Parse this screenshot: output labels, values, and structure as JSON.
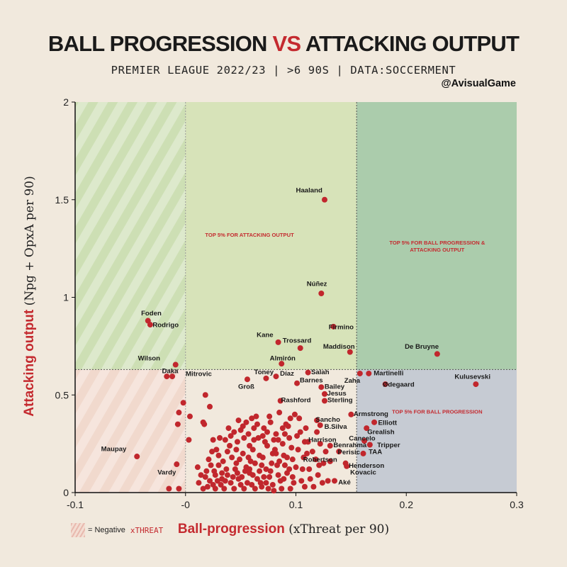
{
  "header": {
    "title_part1": "BALL PROGRESSION ",
    "title_vs": "VS",
    "title_part2": " ATTACKING OUTPUT",
    "subtitle": "PREMIER LEAGUE 2022/23  |  >6 90S  |  DATA:SOCCERMENT",
    "handle": "@AvisualGame"
  },
  "legend": {
    "text": "= Negative",
    "text2": "xTHREAT"
  },
  "axes": {
    "x_bold": "Ball-progression",
    "x_rest": " (xThreat per 90)",
    "y_bold": "Attacking output",
    "y_rest": " (Npg + OpxA per 90)"
  },
  "colors": {
    "background": "#f1e9dd",
    "accent": "#c42a2f",
    "point": "#c1272d",
    "attacking_zone": "#d7e3b9",
    "both_zone": "#abccac",
    "progression_zone": "#c6cbd3",
    "negative_zone_low": "#f1d9cd",
    "negative_zone_high": "#cddfb4"
  },
  "chart_data": {
    "type": "scatter",
    "xlim": [
      -0.1,
      0.3
    ],
    "ylim": [
      0,
      2
    ],
    "xticks": [
      -0.1,
      0,
      0.1,
      0.2,
      0.3
    ],
    "xtick_labels": [
      "-0.1",
      "-0",
      "0.1",
      "0.2",
      "0.3"
    ],
    "yticks": [
      0,
      0.5,
      1,
      1.5,
      2
    ],
    "ytick_labels": [
      "0",
      "0.5",
      "1",
      "1.5",
      "2"
    ],
    "thresholds": {
      "x": 0.155,
      "y": 0.63
    },
    "zone_labels": [
      {
        "text": [
          "TOP 5% FOR ATTACKING OUTPUT"
        ],
        "x": 0.058,
        "y": 1.31
      },
      {
        "text": [
          "TOP 5% FOR BALL PROGRESSION &",
          "ATTACKING OUTPUT"
        ],
        "x": 0.228,
        "y": 1.27
      },
      {
        "text": [
          "TOP 5% FOR BALL PROGRESSION"
        ],
        "x": 0.228,
        "y": 0.405
      }
    ],
    "labeled_points": [
      {
        "name": "Haaland",
        "x": 0.126,
        "y": 1.5,
        "lx": 0.112,
        "ly": 1.55
      },
      {
        "name": "Núñez",
        "x": 0.123,
        "y": 1.02,
        "lx": 0.119,
        "ly": 1.07
      },
      {
        "name": "Foden",
        "x": -0.034,
        "y": 0.88,
        "lx": -0.031,
        "ly": 0.92
      },
      {
        "name": "Rodrigo",
        "x": -0.032,
        "y": 0.86,
        "lx": -0.018,
        "ly": 0.86
      },
      {
        "name": "Firmino",
        "x": 0.134,
        "y": 0.85,
        "lx": 0.141,
        "ly": 0.85
      },
      {
        "name": "Kane",
        "x": 0.084,
        "y": 0.77,
        "lx": 0.072,
        "ly": 0.81
      },
      {
        "name": "Trossard",
        "x": 0.104,
        "y": 0.74,
        "lx": 0.101,
        "ly": 0.78
      },
      {
        "name": "Maddison",
        "x": 0.149,
        "y": 0.72,
        "lx": 0.139,
        "ly": 0.75
      },
      {
        "name": "De Bruyne",
        "x": 0.228,
        "y": 0.71,
        "lx": 0.214,
        "ly": 0.75
      },
      {
        "name": "Wilson",
        "x": -0.009,
        "y": 0.655,
        "lx": -0.033,
        "ly": 0.69
      },
      {
        "name": "Almirón",
        "x": 0.087,
        "y": 0.66,
        "lx": 0.088,
        "ly": 0.69
      },
      {
        "name": "Daka",
        "x": -0.017,
        "y": 0.595,
        "lx": -0.014,
        "ly": 0.625
      },
      {
        "name": "Mitrovic",
        "x": -0.012,
        "y": 0.595,
        "lx": 0.012,
        "ly": 0.61
      },
      {
        "name": "Toney",
        "x": 0.073,
        "y": 0.585,
        "lx": 0.071,
        "ly": 0.618
      },
      {
        "name": "Díaz",
        "x": 0.082,
        "y": 0.595,
        "lx": 0.092,
        "ly": 0.612
      },
      {
        "name": "Salah",
        "x": 0.111,
        "y": 0.615,
        "lx": 0.122,
        "ly": 0.618
      },
      {
        "name": "Zaha",
        "x": 0.158,
        "y": 0.61,
        "lx": 0.151,
        "ly": 0.575
      },
      {
        "name": "Martinelli",
        "x": 0.166,
        "y": 0.61,
        "lx": 0.184,
        "ly": 0.613
      },
      {
        "name": "Kulusevski",
        "x": 0.263,
        "y": 0.555,
        "lx": 0.26,
        "ly": 0.595
      },
      {
        "name": "Groß",
        "x": 0.056,
        "y": 0.58,
        "lx": 0.055,
        "ly": 0.545
      },
      {
        "name": "Barnes",
        "x": 0.101,
        "y": 0.56,
        "lx": 0.114,
        "ly": 0.577
      },
      {
        "name": "Ødegaard",
        "x": 0.181,
        "y": 0.555,
        "lx": 0.193,
        "ly": 0.555
      },
      {
        "name": "Bailey",
        "x": 0.123,
        "y": 0.54,
        "lx": 0.135,
        "ly": 0.545
      },
      {
        "name": "Jesus",
        "x": 0.126,
        "y": 0.505,
        "lx": 0.137,
        "ly": 0.51
      },
      {
        "name": "Rashford",
        "x": 0.086,
        "y": 0.47,
        "lx": 0.1,
        "ly": 0.476
      },
      {
        "name": "Sterling",
        "x": 0.126,
        "y": 0.47,
        "lx": 0.14,
        "ly": 0.475
      },
      {
        "name": "Armstrong",
        "x": 0.15,
        "y": 0.4,
        "lx": 0.168,
        "ly": 0.405
      },
      {
        "name": "Sancho",
        "x": 0.119,
        "y": 0.37,
        "lx": 0.129,
        "ly": 0.376
      },
      {
        "name": "Elliott",
        "x": 0.171,
        "y": 0.36,
        "lx": 0.183,
        "ly": 0.36
      },
      {
        "name": "B.Silva",
        "x": 0.122,
        "y": 0.345,
        "lx": 0.136,
        "ly": 0.34
      },
      {
        "name": "Grealish",
        "x": 0.164,
        "y": 0.33,
        "lx": 0.177,
        "ly": 0.313
      },
      {
        "name": "Harrison",
        "x": 0.108,
        "y": 0.26,
        "lx": 0.124,
        "ly": 0.272
      },
      {
        "name": "Cancelo",
        "x": 0.162,
        "y": 0.265,
        "lx": 0.16,
        "ly": 0.28
      },
      {
        "name": "Tripper",
        "x": 0.167,
        "y": 0.245,
        "lx": 0.184,
        "ly": 0.245
      },
      {
        "name": "Benrahma",
        "x": 0.131,
        "y": 0.24,
        "lx": 0.149,
        "ly": 0.245
      },
      {
        "name": "Perisic",
        "x": 0.139,
        "y": 0.21,
        "lx": 0.148,
        "ly": 0.208
      },
      {
        "name": "TAA",
        "x": 0.161,
        "y": 0.2,
        "lx": 0.172,
        "ly": 0.21
      },
      {
        "name": "Robertson",
        "x": 0.131,
        "y": 0.16,
        "lx": 0.122,
        "ly": 0.17
      },
      {
        "name": "Henderson",
        "x": 0.145,
        "y": 0.15,
        "lx": 0.164,
        "ly": 0.14
      },
      {
        "name": "Kovacic",
        "x": 0.146,
        "y": 0.135,
        "lx": 0.161,
        "ly": 0.105
      },
      {
        "name": "Aké",
        "x": 0.135,
        "y": 0.06,
        "lx": 0.144,
        "ly": 0.055
      },
      {
        "name": "Maupay",
        "x": -0.044,
        "y": 0.185,
        "lx": -0.065,
        "ly": 0.225
      },
      {
        "name": "Vardy",
        "x": -0.008,
        "y": 0.145,
        "lx": -0.017,
        "ly": 0.105
      }
    ],
    "other_points": [
      [
        -0.002,
        0.46
      ],
      [
        0.003,
        0.27
      ],
      [
        -0.006,
        0.41
      ],
      [
        -0.007,
        0.35
      ],
      [
        0.004,
        0.39
      ],
      [
        -0.015,
        0.02
      ],
      [
        -0.006,
        0.02
      ],
      [
        0.016,
        0.36
      ],
      [
        0.017,
        0.35
      ],
      [
        0.018,
        0.5
      ],
      [
        0.022,
        0.44
      ],
      [
        0.024,
        0.21
      ],
      [
        0.03,
        0.14
      ],
      [
        0.018,
        0.08
      ],
      [
        0.016,
        0.02
      ],
      [
        0.012,
        0.05
      ],
      [
        0.011,
        0.13
      ],
      [
        0.022,
        0.06
      ],
      [
        0.027,
        0.02
      ],
      [
        0.033,
        0.1
      ],
      [
        0.035,
        0.02
      ],
      [
        0.038,
        0.21
      ],
      [
        0.042,
        0.18
      ],
      [
        0.045,
        0.12
      ],
      [
        0.047,
        0.26
      ],
      [
        0.05,
        0.32
      ],
      [
        0.048,
        0.07
      ],
      [
        0.052,
        0.2
      ],
      [
        0.055,
        0.36
      ],
      [
        0.057,
        0.3
      ],
      [
        0.058,
        0.1
      ],
      [
        0.06,
        0.04
      ],
      [
        0.061,
        0.22
      ],
      [
        0.063,
        0.15
      ],
      [
        0.064,
        0.39
      ],
      [
        0.066,
        0.28
      ],
      [
        0.068,
        0.05
      ],
      [
        0.07,
        0.18
      ],
      [
        0.071,
        0.33
      ],
      [
        0.073,
        0.12
      ],
      [
        0.074,
        0.24
      ],
      [
        0.076,
        0.08
      ],
      [
        0.077,
        0.36
      ],
      [
        0.079,
        0.2
      ],
      [
        0.08,
        0.01
      ],
      [
        0.082,
        0.3
      ],
      [
        0.083,
        0.14
      ],
      [
        0.085,
        0.41
      ],
      [
        0.086,
        0.06
      ],
      [
        0.088,
        0.25
      ],
      [
        0.089,
        0.19
      ],
      [
        0.091,
        0.35
      ],
      [
        0.092,
        0.1
      ],
      [
        0.094,
        0.28
      ],
      [
        0.095,
        0.02
      ],
      [
        0.097,
        0.17
      ],
      [
        0.099,
        0.4
      ],
      [
        0.1,
        0.13
      ],
      [
        0.102,
        0.22
      ],
      [
        0.104,
        0.31
      ],
      [
        0.105,
        0.06
      ],
      [
        0.107,
        0.18
      ],
      [
        0.108,
        0.03
      ],
      [
        0.11,
        0.2
      ],
      [
        0.112,
        0.12
      ],
      [
        0.115,
        0.21
      ],
      [
        0.118,
        0.17
      ],
      [
        0.12,
        0.09
      ],
      [
        0.122,
        0.25
      ],
      [
        0.125,
        0.15
      ],
      [
        0.127,
        0.21
      ],
      [
        0.129,
        0.06
      ],
      [
        0.031,
        0.28
      ],
      [
        0.039,
        0.33
      ],
      [
        0.044,
        0.02
      ],
      [
        0.028,
        0.22
      ],
      [
        0.036,
        0.06
      ],
      [
        0.041,
        0.29
      ],
      [
        0.053,
        0.02
      ],
      [
        0.062,
        0.33
      ],
      [
        0.069,
        0.03
      ],
      [
        0.075,
        0.02
      ],
      [
        0.081,
        0.22
      ],
      [
        0.087,
        0.02
      ],
      [
        0.093,
        0.34
      ],
      [
        0.098,
        0.05
      ],
      [
        0.058,
        0.24
      ],
      [
        0.046,
        0.15
      ],
      [
        0.067,
        0.11
      ],
      [
        0.072,
        0.26
      ],
      [
        0.026,
        0.11
      ],
      [
        0.034,
        0.16
      ],
      [
        0.053,
        0.28
      ],
      [
        0.059,
        0.16
      ],
      [
        0.065,
        0.07
      ],
      [
        0.078,
        0.15
      ],
      [
        0.084,
        0.09
      ],
      [
        0.09,
        0.14
      ],
      [
        0.096,
        0.23
      ],
      [
        0.101,
        0.29
      ],
      [
        0.106,
        0.12
      ],
      [
        0.111,
        0.26
      ],
      [
        0.116,
        0.03
      ],
      [
        0.119,
        0.31
      ],
      [
        0.02,
        0.03
      ],
      [
        0.023,
        0.14
      ],
      [
        0.029,
        0.06
      ],
      [
        0.032,
        0.04
      ],
      [
        0.037,
        0.12
      ],
      [
        0.043,
        0.08
      ],
      [
        0.049,
        0.17
      ],
      [
        0.054,
        0.11
      ],
      [
        0.056,
        0.05
      ],
      [
        0.063,
        0.02
      ],
      [
        0.067,
        0.19
      ],
      [
        0.074,
        0.31
      ],
      [
        0.08,
        0.27
      ],
      [
        0.085,
        0.16
      ],
      [
        0.09,
        0.3
      ],
      [
        0.095,
        0.38
      ],
      [
        0.06,
        0.38
      ],
      [
        0.052,
        0.34
      ],
      [
        0.048,
        0.37
      ],
      [
        0.044,
        0.31
      ],
      [
        0.04,
        0.24
      ],
      [
        0.065,
        0.35
      ],
      [
        0.07,
        0.29
      ],
      [
        0.076,
        0.39
      ],
      [
        0.082,
        0.2
      ],
      [
        0.058,
        0.12
      ],
      [
        0.03,
        0.19
      ],
      [
        0.025,
        0.27
      ],
      [
        0.021,
        0.17
      ],
      [
        0.019,
        0.11
      ],
      [
        0.036,
        0.27
      ],
      [
        0.046,
        0.22
      ],
      [
        0.051,
        0.08
      ],
      [
        0.062,
        0.27
      ],
      [
        0.071,
        0.08
      ],
      [
        0.077,
        0.11
      ],
      [
        0.088,
        0.33
      ],
      [
        0.092,
        0.18
      ],
      [
        0.097,
        0.08
      ],
      [
        0.103,
        0.38
      ],
      [
        0.109,
        0.33
      ],
      [
        0.113,
        0.07
      ],
      [
        0.121,
        0.14
      ],
      [
        0.124,
        0.05
      ],
      [
        0.014,
        0.09
      ],
      [
        0.025,
        0.04
      ],
      [
        0.038,
        0.09
      ],
      [
        0.05,
        0.04
      ],
      [
        0.055,
        0.13
      ],
      [
        0.061,
        0.09
      ],
      [
        0.069,
        0.14
      ],
      [
        0.073,
        0.05
      ],
      [
        0.079,
        0.04
      ],
      [
        0.084,
        0.27
      ],
      [
        0.089,
        0.07
      ],
      [
        0.094,
        0.12
      ],
      [
        0.041,
        0.05
      ],
      [
        0.033,
        0.07
      ],
      [
        0.027,
        0.09
      ],
      [
        0.047,
        0.1
      ],
      [
        0.057,
        0.18
      ]
    ]
  }
}
